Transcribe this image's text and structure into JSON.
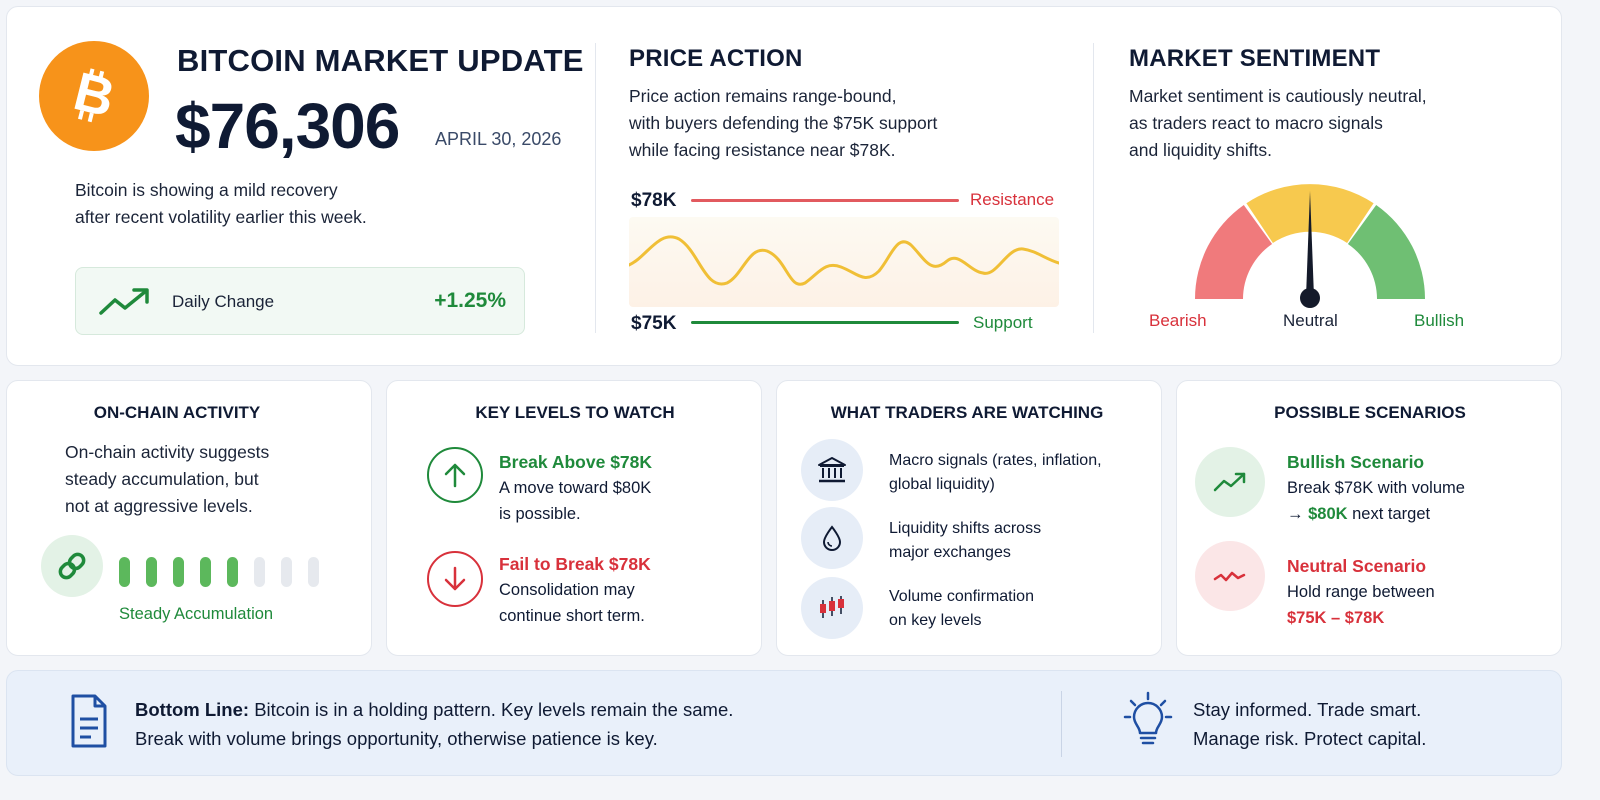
{
  "header": {
    "title": "BITCOIN MARKET UPDATE",
    "price": "$76,306",
    "date": "APRIL 30, 2026",
    "summary_line1": "Bitcoin is showing a mild recovery",
    "summary_line2": "after recent volatility earlier this week.",
    "daily_change_label": "Daily Change",
    "daily_change_value": "+1.25%"
  },
  "price_action": {
    "title": "PRICE ACTION",
    "text_line1": "Price action remains range-bound,",
    "text_line2": "with buyers defending the $75K support",
    "text_line3": "while facing resistance near $78K.",
    "resistance_level": "$78K",
    "resistance_label": "Resistance",
    "support_level": "$75K",
    "support_label": "Support"
  },
  "sentiment": {
    "title": "MARKET SENTIMENT",
    "text_line1": "Market sentiment is cautiously neutral,",
    "text_line2": "as traders react to macro signals",
    "text_line3": "and liquidity shifts.",
    "bearish": "Bearish",
    "neutral": "Neutral",
    "bullish": "Bullish",
    "reading": "Neutral"
  },
  "onchain": {
    "title": "ON-CHAIN ACTIVITY",
    "text_line1": "On-chain activity suggests",
    "text_line2": "steady accumulation, but",
    "text_line3": "not at aggressive levels.",
    "status": "Steady Accumulation",
    "bars_filled": 5,
    "bars_total": 8
  },
  "key_levels": {
    "title": "KEY LEVELS TO WATCH",
    "up_title": "Break Above $78K",
    "up_line1": "A move toward $80K",
    "up_line2": "is possible.",
    "down_title": "Fail to Break $78K",
    "down_line1": "Consolidation may",
    "down_line2": "continue short term."
  },
  "watching": {
    "title": "WHAT TRADERS ARE WATCHING",
    "item1_line1": "Macro signals (rates, inflation,",
    "item1_line2": "global liquidity)",
    "item2_line1": "Liquidity shifts across",
    "item2_line2": "major exchanges",
    "item3_line1": "Volume confirmation",
    "item3_line2": "on key levels"
  },
  "scenarios": {
    "title": "POSSIBLE SCENARIOS",
    "bull_title": "Bullish Scenario",
    "bull_line1": "Break $78K with volume",
    "bull_arrow": "→ ",
    "bull_target": "$80K",
    "bull_suffix": " next target",
    "neutral_title": "Neutral Scenario",
    "neutral_line1": "Hold range between",
    "neutral_range": "$75K – $78K"
  },
  "footer": {
    "bottom_label": "Bottom Line:",
    "bottom_line1": " Bitcoin is in a holding pattern. Key levels remain the same.",
    "bottom_line2": "Break with volume brings opportunity, otherwise patience is key.",
    "tip_line1": "Stay informed. Trade smart.",
    "tip_line2": "Manage risk. Protect capital."
  },
  "colors": {
    "brand_orange": "#f7931a",
    "green": "#1f8a3b",
    "red": "#d8313b",
    "navy": "#0f1a33",
    "footer_bg": "#e9f0fa"
  }
}
